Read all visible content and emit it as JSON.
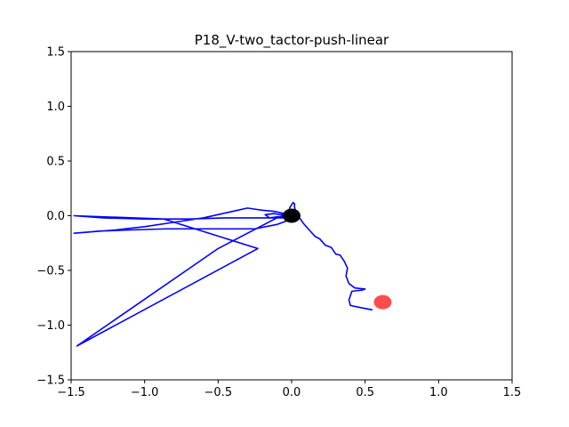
{
  "chart_data": {
    "type": "line",
    "title": "P18_V-two_tactor-push-linear",
    "xlabel": "",
    "ylabel": "",
    "xlim": [
      -1.5,
      1.5
    ],
    "ylim": [
      -1.5,
      1.5
    ],
    "grid": false,
    "x_ticks": [
      -1.5,
      -1.0,
      -0.5,
      0.0,
      0.5,
      1.0,
      1.5
    ],
    "x_tick_labels": [
      "−1.5",
      "−1.0",
      "−0.5",
      "0.0",
      "0.5",
      "1.0",
      "1.5"
    ],
    "y_ticks": [
      1.5,
      1.0,
      0.5,
      0.0,
      -0.5,
      -1.0,
      -1.5
    ],
    "y_tick_labels": [
      "1.5",
      "1.0",
      "0.5",
      "0.0",
      "−0.5",
      "−1.0",
      "−1.5"
    ],
    "series": [
      {
        "color": "#0000ff",
        "x": [
          0.55,
          0.47,
          0.4,
          0.39,
          0.41,
          0.48,
          0.5,
          0.43,
          0.39,
          0.37,
          0.38,
          0.36,
          0.33,
          0.3,
          0.27,
          0.23,
          0.19,
          0.16,
          0.12,
          0.1,
          0.08,
          0.06,
          0.04,
          0.03,
          0.02,
          0.02,
          0.01,
          0.0,
          -0.01,
          -0.02,
          -0.03,
          -0.01,
          0.01,
          -0.02,
          -0.05,
          -0.1,
          -0.15,
          -0.18,
          -0.12,
          -0.08,
          -0.04,
          -0.02,
          -0.05,
          -0.12,
          -0.2,
          -0.25,
          -0.3,
          -0.4,
          -0.6,
          -0.8,
          -1.0,
          -1.2,
          -1.48,
          -1.3,
          -1.1,
          -0.85,
          -0.6,
          -0.4,
          -0.25,
          -0.1,
          0.0,
          -0.05,
          -0.2,
          -0.45,
          -0.7,
          -1.0,
          -1.28,
          -1.48,
          -0.87,
          -0.23,
          -1.46,
          -0.5,
          -0.1,
          -0.02,
          -0.05
        ],
        "y": [
          -0.86,
          -0.84,
          -0.82,
          -0.77,
          -0.69,
          -0.68,
          -0.67,
          -0.66,
          -0.62,
          -0.55,
          -0.48,
          -0.42,
          -0.36,
          -0.35,
          -0.29,
          -0.27,
          -0.21,
          -0.19,
          -0.13,
          -0.1,
          -0.07,
          -0.03,
          -0.01,
          0.02,
          0.08,
          0.11,
          0.12,
          0.1,
          0.08,
          0.04,
          0.01,
          -0.01,
          -0.02,
          -0.01,
          -0.01,
          -0.01,
          -0.02,
          0.01,
          0.02,
          0.01,
          0.01,
          0.0,
          0.02,
          0.04,
          0.05,
          0.06,
          0.07,
          0.04,
          -0.02,
          -0.06,
          -0.1,
          -0.13,
          -0.16,
          -0.14,
          -0.13,
          -0.12,
          -0.12,
          -0.12,
          -0.12,
          -0.08,
          -0.03,
          -0.02,
          -0.02,
          -0.02,
          -0.03,
          -0.03,
          -0.02,
          0.0,
          -0.03,
          -0.3,
          -1.19,
          -0.3,
          -0.02,
          0.02,
          0.02
        ]
      }
    ],
    "markers": [
      {
        "x": 0.0,
        "y": 0.0,
        "color": "#000000",
        "alpha": 1.0
      },
      {
        "x": 0.62,
        "y": -0.79,
        "color": "#ff0000",
        "alpha": 0.7
      }
    ]
  }
}
